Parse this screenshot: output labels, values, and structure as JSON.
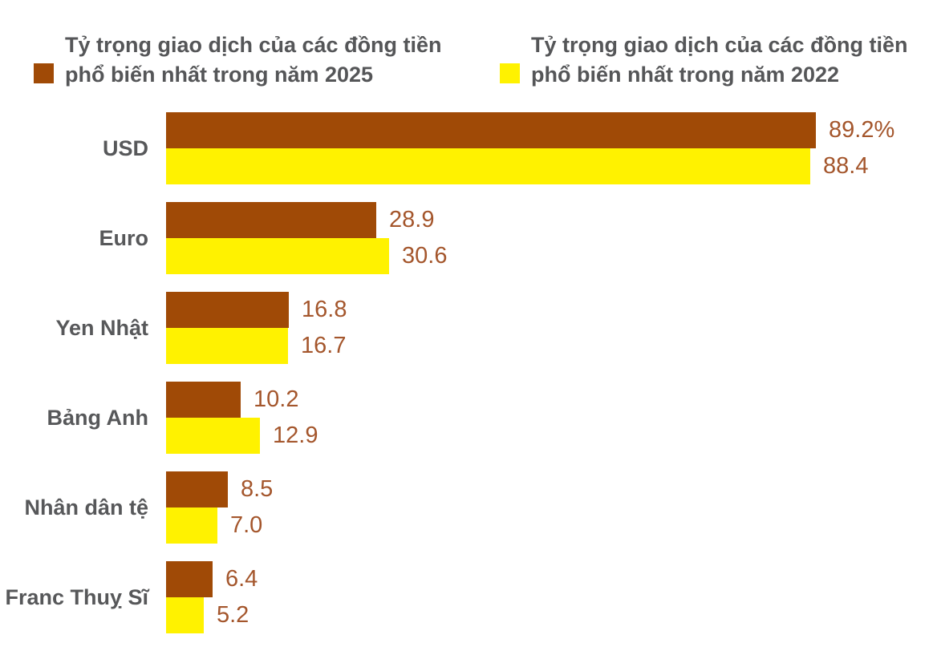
{
  "colors": {
    "series_2025": "#a04a06",
    "series_2022": "#fff200",
    "legend_text": "#555658",
    "category_label": "#57585a",
    "value_label": "#a4562c",
    "background": "#ffffff"
  },
  "legend": {
    "items": [
      {
        "key": "2025",
        "label": "Tỷ trọng giao dịch của các đồng tiền phổ biến nhất trong năm 2025",
        "color": "#a04a06"
      },
      {
        "key": "2022",
        "label": "Tỷ trọng giao dịch của các đồng tiền phổ biến nhất trong năm 2022",
        "color": "#fff200"
      }
    ]
  },
  "chart_data": {
    "type": "bar",
    "orientation": "horizontal",
    "title": "",
    "xlabel": "",
    "ylabel": "",
    "unit": "%",
    "grid": false,
    "legend_position": "top",
    "xlim": [
      0,
      89.2
    ],
    "categories": [
      "USD",
      "Euro",
      "Yen Nhật",
      "Bảng Anh",
      "Nhân dân tệ",
      "Franc Thuỵ Sĩ"
    ],
    "series": [
      {
        "key": "2025",
        "name": "Tỷ trọng giao dịch của các đồng tiền phổ biến nhất trong năm 2025",
        "color": "#a04a06",
        "values": [
          89.2,
          28.9,
          16.8,
          10.2,
          8.5,
          6.4
        ],
        "value_labels": [
          "89.2%",
          "28.9",
          "16.8",
          "10.2",
          "8.5",
          "6.4"
        ]
      },
      {
        "key": "2022",
        "name": "Tỷ trọng giao dịch của các đồng tiền phổ biến nhất trong năm 2022",
        "color": "#fff200",
        "values": [
          88.4,
          30.6,
          16.7,
          12.9,
          7.0,
          5.2
        ],
        "value_labels": [
          "88.4",
          "30.6",
          "16.7",
          "12.9",
          "7.0",
          "5.2"
        ]
      }
    ]
  }
}
